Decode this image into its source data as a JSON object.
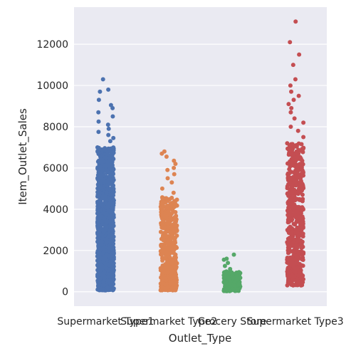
{
  "chart_data": {
    "type": "scatter",
    "subtype": "strip",
    "title": "",
    "xlabel": "Outlet_Type",
    "ylabel": "Item_Outlet_Sales",
    "ylim": [
      -700,
      13800
    ],
    "yticks": [
      0,
      2000,
      4000,
      6000,
      8000,
      10000,
      12000
    ],
    "grid": true,
    "background": "#eaeaf2",
    "categories": [
      "Supermarket Type1",
      "Supermarket Type2",
      "Grocery Store",
      "Supermarket Type3"
    ],
    "series": [
      {
        "category": "Supermarket Type1",
        "color": "#4c72b0",
        "min": 70,
        "dense_max": 7000,
        "count": 1100,
        "outliers": [
          7300,
          7450,
          7600,
          7750,
          7900,
          8100,
          8250,
          8500,
          8700,
          8900,
          9050,
          9300,
          9700,
          9800,
          10300
        ]
      },
      {
        "category": "Supermarket Type2",
        "color": "#dd8452",
        "min": 70,
        "dense_max": 4600,
        "count": 500,
        "outliers": [
          4800,
          5000,
          5300,
          5500,
          5700,
          5900,
          6000,
          6200,
          6350,
          6550,
          6700,
          6800
        ]
      },
      {
        "category": "Grocery Store",
        "color": "#55a868",
        "min": 30,
        "dense_max": 1000,
        "count": 250,
        "outliers": [
          1100,
          1250,
          1400,
          1550,
          1600,
          1800
        ]
      },
      {
        "category": "Supermarket Type3",
        "color": "#c44e52",
        "min": 300,
        "dense_max": 7200,
        "count": 600,
        "outliers": [
          7500,
          7800,
          8000,
          8200,
          8400,
          8700,
          8900,
          9100,
          9300,
          9500,
          9700,
          10000,
          10300,
          11000,
          11500,
          12100,
          13100
        ]
      }
    ]
  }
}
